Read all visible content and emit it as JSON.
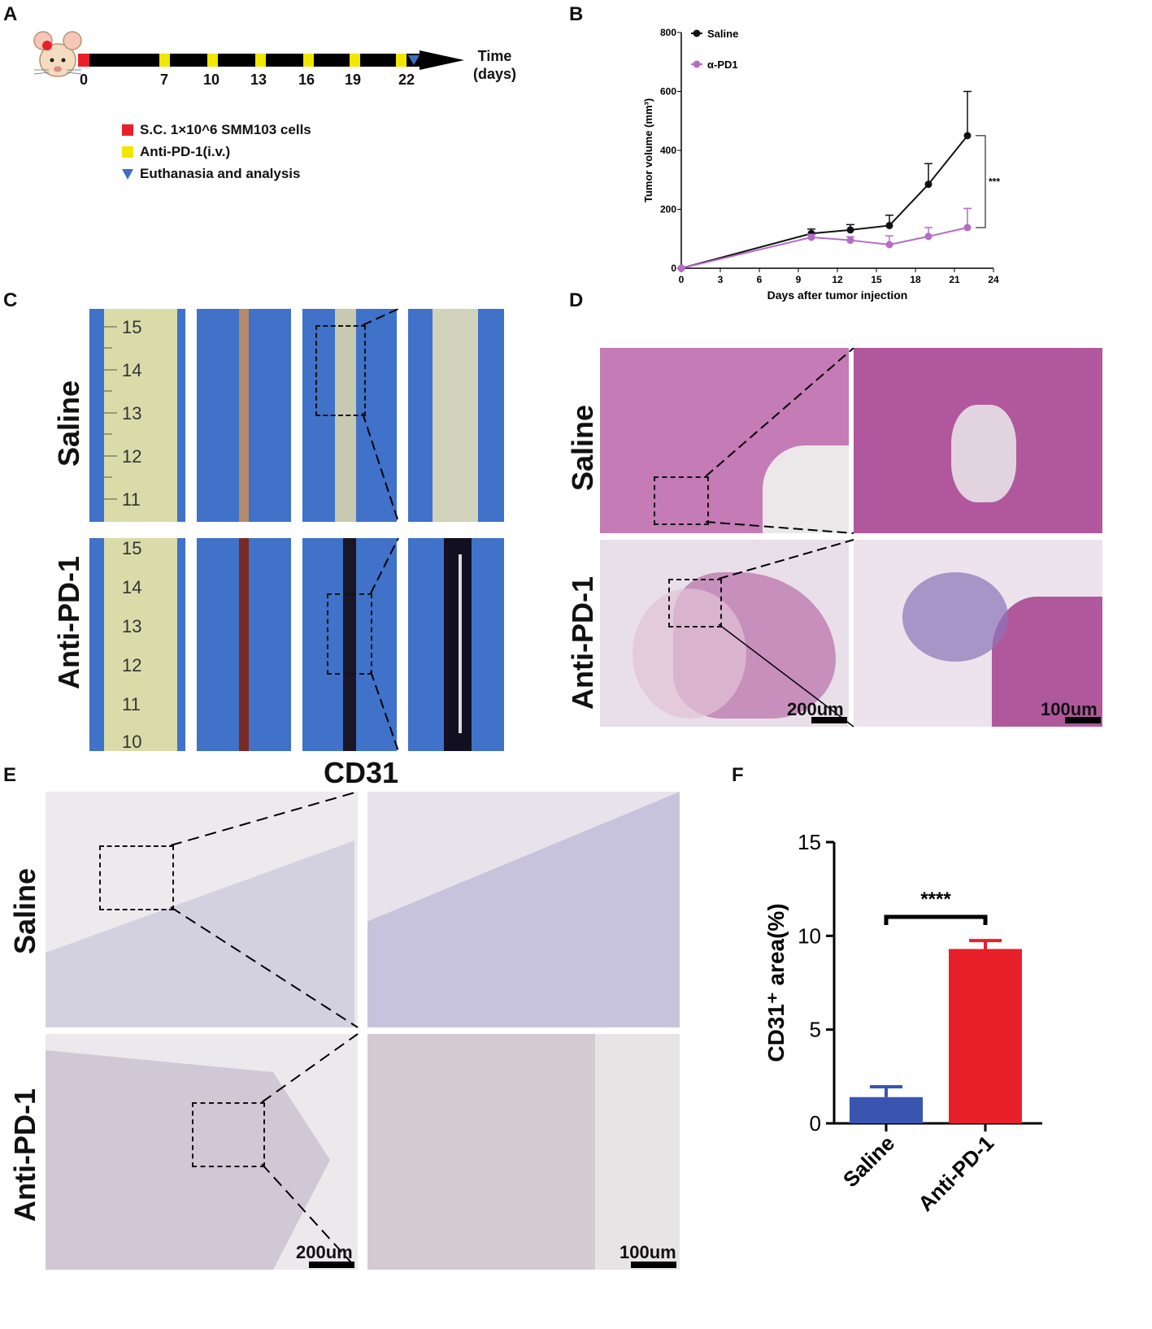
{
  "panelA": {
    "label": "A",
    "ticks": [
      "0",
      "7",
      "10",
      "13",
      "16",
      "19",
      "22"
    ],
    "time_label": "Time",
    "time_unit": "(days)",
    "legend": [
      {
        "color": "#e8202a",
        "shape": "square",
        "text": "S.C. 1×10^6 SMM103 cells"
      },
      {
        "color": "#f2e600",
        "shape": "square",
        "text": "Anti-PD-1(i.v.)"
      },
      {
        "color": "#3d6fc4",
        "shape": "triangle",
        "text": "Euthanasia and analysis"
      }
    ],
    "mouse_icon": "mouse-icon"
  },
  "panelB": {
    "label": "B",
    "chart_data": {
      "type": "line",
      "xlabel": "Days after tumor injection",
      "ylabel": "Tumor volume (mm³)",
      "xlim": [
        0,
        24
      ],
      "ylim": [
        0,
        800
      ],
      "xticks": [
        "0",
        "3",
        "6",
        "9",
        "12",
        "15",
        "18",
        "21",
        "24"
      ],
      "yticks": [
        "0",
        "200",
        "400",
        "600",
        "800"
      ],
      "series": [
        {
          "name": "Saline",
          "color": "#111111",
          "x": [
            0,
            10,
            13,
            16,
            19,
            22
          ],
          "y": [
            0,
            118,
            130,
            145,
            285,
            450
          ],
          "err": [
            0,
            15,
            18,
            35,
            70,
            150
          ]
        },
        {
          "name": "α-PD1",
          "color": "#b46cc4",
          "x": [
            0,
            10,
            13,
            16,
            19,
            22
          ],
          "y": [
            0,
            105,
            95,
            80,
            108,
            138
          ],
          "err": [
            0,
            10,
            12,
            30,
            30,
            65
          ]
        }
      ],
      "significance": "***"
    }
  },
  "panelC": {
    "label": "C",
    "row_labels": [
      "Saline",
      "Anti-PD-1"
    ],
    "ruler_top": [
      "15",
      "14",
      "13",
      "12",
      "11"
    ],
    "ruler_bottom": [
      "15",
      "14",
      "13",
      "12",
      "11",
      "10"
    ]
  },
  "panelD": {
    "label": "D",
    "row_labels": [
      "Saline",
      "Anti-PD-1"
    ],
    "scale_left": "200um",
    "scale_right": "100um"
  },
  "panelE": {
    "label": "E",
    "title": "CD31",
    "row_labels": [
      "Saline",
      "Anti-PD-1"
    ],
    "scale_left": "200um",
    "scale_right": "100um"
  },
  "panelF": {
    "label": "F",
    "chart_data": {
      "type": "bar",
      "categories": [
        "Saline",
        "Anti-PD-1"
      ],
      "values": [
        1.4,
        9.3
      ],
      "err": [
        0.55,
        0.45
      ],
      "colors": [
        "#3a55b0",
        "#e8202a"
      ],
      "ylabel": "CD31⁺ area(%)",
      "ylim": [
        0,
        15
      ],
      "yticks": [
        "0",
        "5",
        "10",
        "15"
      ],
      "significance": "****"
    }
  }
}
